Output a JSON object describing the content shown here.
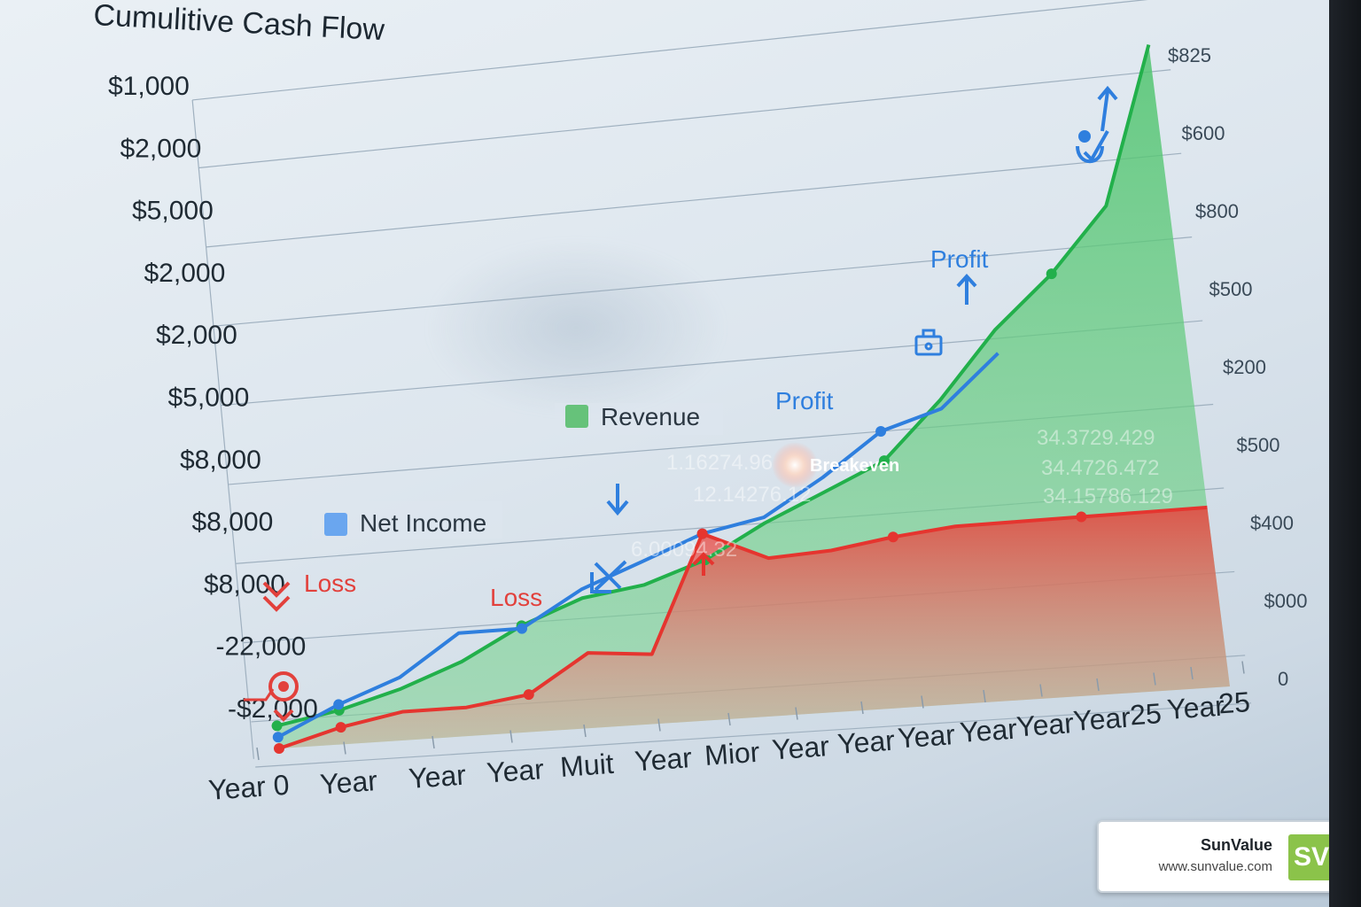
{
  "chart_data": {
    "type": "area",
    "title": "Cumulitive Cash Flow",
    "y_axis_left_labels": [
      "$1,000",
      "$2,000",
      "$5,000",
      "$2,000",
      "$2,000",
      "$5,000",
      "$8,000",
      "$8,000",
      "$8,000",
      "-22,000",
      "-$2,000"
    ],
    "y_axis_right_labels": [
      "$825",
      "$600",
      "$800",
      "$500",
      "$200",
      "$500",
      "$400",
      "$000",
      "0"
    ],
    "x_axis_labels": [
      "Year 0",
      "Year",
      "Year",
      "Year",
      "Muit",
      "Year",
      "Mior",
      "Year",
      "Year",
      "Year",
      "Year",
      "Year",
      "Year",
      "25",
      "Year",
      "25"
    ],
    "legend": [
      {
        "name": "Revenue",
        "color": "#66c27a"
      },
      {
        "name": "Net Income",
        "color": "#6aa6ef"
      }
    ],
    "annotations": {
      "loss_left": "Loss",
      "loss_mid": "Loss",
      "profit_mid": "Profit",
      "profit_upper": "Profit",
      "breakeven": "Breakeven"
    },
    "ghost_values": [
      "1.16274.96",
      "12.14276.12",
      "6.00094.32",
      "34.3729.429",
      "34.4726.472",
      "34.15786.129"
    ],
    "series": [
      {
        "name": "green",
        "color": "#22b04b",
        "x": [
          0,
          1,
          2,
          3,
          4,
          5,
          6,
          7,
          8,
          9,
          10,
          11,
          12,
          13,
          14,
          15
        ],
        "values": [
          0.08,
          0.12,
          0.18,
          0.26,
          0.37,
          0.45,
          0.48,
          0.55,
          0.66,
          0.75,
          0.84,
          1.03,
          1.25,
          1.42,
          1.63,
          2.15
        ]
      },
      {
        "name": "blue",
        "color": "#2f7fde",
        "x": [
          0,
          1,
          2,
          3,
          4,
          5,
          6,
          7,
          8,
          9,
          10,
          11,
          12
        ],
        "values": [
          0.04,
          0.14,
          0.22,
          0.36,
          0.36,
          0.48,
          0.56,
          0.64,
          0.68,
          0.8,
          0.94,
          1.0,
          1.17
        ]
      },
      {
        "name": "red",
        "color": "#e5352f",
        "x": [
          0,
          1,
          2,
          3,
          4,
          5,
          6,
          7,
          8,
          9,
          10,
          11,
          12,
          13,
          14,
          15
        ],
        "values": [
          0.0,
          0.06,
          0.1,
          0.1,
          0.13,
          0.26,
          0.24,
          0.64,
          0.54,
          0.55,
          0.58,
          0.6,
          0.6,
          0.6,
          0.6,
          0.6
        ]
      }
    ],
    "grid": true
  },
  "branding": {
    "name": "SunValue",
    "url": "www.sunvalue.com",
    "logo_text": "SV",
    "logo_color": "#8bc34a"
  }
}
